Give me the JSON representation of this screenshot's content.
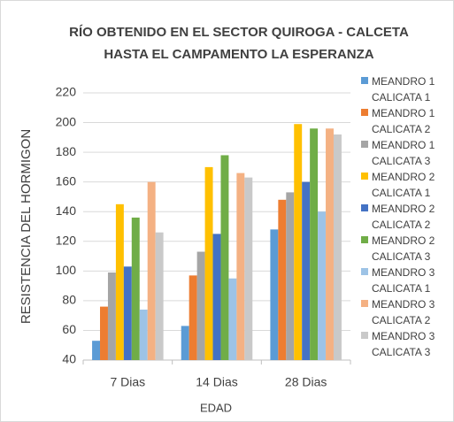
{
  "chart_data": {
    "type": "bar",
    "title": "RÍO OBTENIDO  EN EL SECTOR QUIROGA - CALCETA HASTA EL CAMPAMENTO LA ESPERANZA",
    "x_label": "EDAD",
    "y_label": "RESISTENCIA DEL HORMIGON",
    "categories": [
      "7 Dias",
      "14 Dias",
      "28 Dias"
    ],
    "series": [
      {
        "name": "MEANDRO 1 CALICATA 1",
        "color": "#5b9bd5",
        "values": [
          53,
          63,
          128
        ]
      },
      {
        "name": "MEANDRO 1 CALICATA 2",
        "color": "#ed7d31",
        "values": [
          76,
          97,
          148
        ]
      },
      {
        "name": "MEANDRO 1 CALICATA 3",
        "color": "#a5a5a5",
        "values": [
          99,
          113,
          153
        ]
      },
      {
        "name": "MEANDRO 2 CALICATA 1",
        "color": "#ffc000",
        "values": [
          145,
          170,
          199
        ]
      },
      {
        "name": "MEANDRO 2 CALICATA 2",
        "color": "#4472c4",
        "values": [
          103,
          125,
          160
        ]
      },
      {
        "name": "MEANDRO 2 CALICATA 3",
        "color": "#70ad47",
        "values": [
          136,
          178,
          196
        ]
      },
      {
        "name": "MEANDRO 3 CALICATA 1",
        "color": "#9dc3e6",
        "values": [
          74,
          95,
          140
        ]
      },
      {
        "name": "MEANDRO 3 CALICATA 2",
        "color": "#f4b183",
        "values": [
          160,
          166,
          196
        ]
      },
      {
        "name": "MEANDRO 3 CALICATA 3",
        "color": "#c9c9c9",
        "values": [
          126,
          163,
          192
        ]
      }
    ],
    "ylim": [
      40,
      220
    ],
    "yticks": [
      40,
      60,
      80,
      100,
      120,
      140,
      160,
      180,
      200,
      220
    ],
    "grid": true,
    "legend": "right"
  }
}
